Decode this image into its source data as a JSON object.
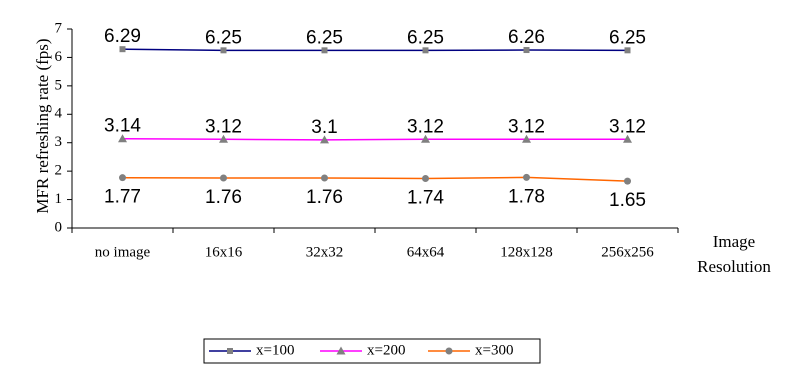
{
  "chart_data": {
    "type": "line",
    "categories": [
      "no image",
      "16x16",
      "32x32",
      "64x64",
      "128x128",
      "256x256"
    ],
    "series": [
      {
        "name": "x=100",
        "values": [
          6.29,
          6.25,
          6.25,
          6.25,
          6.26,
          6.25
        ],
        "labels": [
          "6.29",
          "6.25",
          "6.25",
          "6.25",
          "6.26",
          "6.25"
        ],
        "color": "#000080",
        "marker": "square"
      },
      {
        "name": "x=200",
        "values": [
          3.14,
          3.12,
          3.1,
          3.12,
          3.12,
          3.12
        ],
        "labels": [
          "3.14",
          "3.12",
          "3.1",
          "3.12",
          "3.12",
          "3.12"
        ],
        "color": "#ff00ff",
        "marker": "triangle"
      },
      {
        "name": "x=300",
        "values": [
          1.77,
          1.76,
          1.76,
          1.74,
          1.78,
          1.65
        ],
        "labels": [
          "1.77",
          "1.76",
          "1.76",
          "1.74",
          "1.78",
          "1.65"
        ],
        "color": "#ff6600",
        "marker": "circle"
      }
    ],
    "ylabel": "MFR refreshing rate (fps)",
    "xlabel_line1": "Image",
    "xlabel_line2": "Resolution",
    "ylim": [
      0,
      7
    ],
    "yticks": [
      "0",
      "1",
      "2",
      "3",
      "4",
      "5",
      "6",
      "7"
    ],
    "grid": false,
    "legend_position": "bottom",
    "marker_color": "#808080"
  }
}
